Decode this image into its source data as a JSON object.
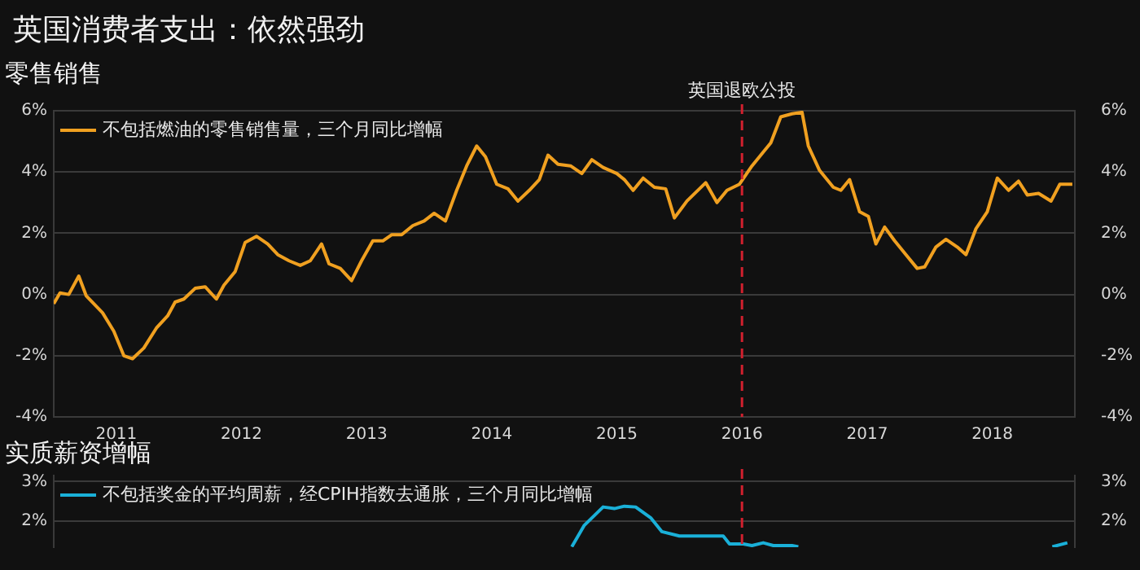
{
  "chart_data": [
    {
      "type": "line",
      "title": "英国消费者支出：依然强劲",
      "subtitle": "零售销售",
      "legend": "top left",
      "grid": "y",
      "line_style": "solid",
      "marker": "none",
      "xlim": [
        2010.5,
        2018.66
      ],
      "xticks": [
        2011,
        2012,
        2013,
        2014,
        2015,
        2016,
        2017,
        2018
      ],
      "ylim": [
        -4,
        6
      ],
      "yticks": [
        {
          "value": -4,
          "label": "-4%"
        },
        {
          "value": -2,
          "label": "-2%"
        },
        {
          "value": 0,
          "label": "0%"
        },
        {
          "value": 2,
          "label": "2%"
        },
        {
          "value": 4,
          "label": "4%"
        },
        {
          "value": 6,
          "label": "6%"
        }
      ],
      "y2lim": [
        -4,
        6
      ],
      "y2ticks": [
        {
          "value": -4,
          "label": "-4%"
        },
        {
          "value": -2,
          "label": "-2%"
        },
        {
          "value": 0,
          "label": "0%"
        },
        {
          "value": 2,
          "label": "2%"
        },
        {
          "value": 4,
          "label": "4%"
        },
        {
          "value": 6,
          "label": "6%"
        }
      ],
      "ref_lines": [
        {
          "axis": "x",
          "value": 2016,
          "label": "英国退欧公投",
          "color": "#d0202e",
          "line_style": "dashed"
        }
      ],
      "series": [
        {
          "name": "不包括燃油的零售销售量，三个月同比增幅",
          "color": "#f0a020",
          "x": [
            2010.5,
            2010.55,
            2010.62,
            2010.7,
            2010.76,
            2010.89,
            2010.98,
            2011.06,
            2011.13,
            2011.22,
            2011.32,
            2011.41,
            2011.47,
            2011.54,
            2011.63,
            2011.71,
            2011.8,
            2011.86,
            2011.95,
            2012.03,
            2012.12,
            2012.21,
            2012.29,
            2012.38,
            2012.47,
            2012.55,
            2012.64,
            2012.7,
            2012.79,
            2012.88,
            2012.96,
            2013.05,
            2013.13,
            2013.2,
            2013.28,
            2013.37,
            2013.46,
            2013.54,
            2013.63,
            2013.72,
            2013.8,
            2013.88,
            2013.95,
            2014.04,
            2014.13,
            2014.21,
            2014.3,
            2014.38,
            2014.45,
            2014.53,
            2014.63,
            2014.72,
            2014.8,
            2014.89,
            2015,
            2015.06,
            2015.13,
            2015.21,
            2015.3,
            2015.39,
            2015.46,
            2015.56,
            2015.71,
            2015.8,
            2015.88,
            2015.98,
            2016.08,
            2016.17,
            2016.23,
            2016.31,
            2016.4,
            2016.48,
            2016.53,
            2016.62,
            2016.73,
            2016.79,
            2016.86,
            2016.94,
            2017.01,
            2017.07,
            2017.14,
            2017.22,
            2017.31,
            2017.4,
            2017.46,
            2017.55,
            2017.63,
            2017.72,
            2017.79,
            2017.87,
            2017.96,
            2018.04,
            2018.13,
            2018.21,
            2018.28,
            2018.37,
            2018.47,
            2018.54,
            2018.64
          ],
          "values": [
            -0.3,
            0.05,
            0,
            0.6,
            -0.05,
            -0.6,
            -1.2,
            -2,
            -2.1,
            -1.75,
            -1.1,
            -0.7,
            -0.25,
            -0.15,
            0.2,
            0.25,
            -0.15,
            0.3,
            0.75,
            1.7,
            1.9,
            1.65,
            1.3,
            1.1,
            0.95,
            1.1,
            1.65,
            1,
            0.85,
            0.45,
            1.1,
            1.75,
            1.75,
            1.95,
            1.95,
            2.25,
            2.4,
            2.65,
            2.4,
            3.4,
            4.2,
            4.85,
            4.5,
            3.6,
            3.45,
            3.05,
            3.4,
            3.75,
            4.55,
            4.25,
            4.2,
            3.95,
            4.4,
            4.15,
            3.95,
            3.75,
            3.4,
            3.8,
            3.5,
            3.45,
            2.5,
            3.05,
            3.65,
            3,
            3.4,
            3.6,
            4.2,
            4.65,
            4.95,
            5.8,
            5.9,
            5.95,
            4.85,
            4.05,
            3.5,
            3.4,
            3.75,
            2.7,
            2.55,
            1.65,
            2.2,
            1.75,
            1.3,
            0.85,
            0.9,
            1.55,
            1.8,
            1.55,
            1.3,
            2.15,
            2.7,
            3.8,
            3.4,
            3.7,
            3.25,
            3.3,
            3.05,
            3.6,
            3.6
          ]
        }
      ]
    },
    {
      "type": "line",
      "title": "实质薪资增幅",
      "legend": "top left",
      "grid": "y",
      "line_style": "solid",
      "marker": "none",
      "tick_labels": "y",
      "xlim": [
        2010.5,
        2018.66
      ],
      "ylim": [
        1.35,
        3.15
      ],
      "yticks": [
        {
          "value": 2,
          "label": "2%"
        },
        {
          "value": 3,
          "label": "3%"
        }
      ],
      "y2lim": [
        1.35,
        3.15
      ],
      "y2ticks": [
        {
          "value": 2,
          "label": "2%"
        },
        {
          "value": 3,
          "label": "3%"
        }
      ],
      "ref_lines": [
        {
          "axis": "x",
          "value": 2016,
          "color": "#d0202e",
          "line_style": "dashed"
        }
      ],
      "series": [
        {
          "name": "不包括奖金的平均周薪，经CPIH指数去通胀，三个月同比增幅",
          "color": "#1ab0d8",
          "x": [
            2014.64,
            2014.74,
            2014.89,
            2014.98,
            2015.06,
            2015.15,
            2015.27,
            2015.36,
            2015.5,
            2015.85,
            2015.9,
            2016.01,
            2016.08,
            2016.17,
            2016.25,
            2016.4,
            2016.45,
            2017.5,
            2018.48,
            2018.6
          ],
          "values": [
            1.36,
            1.9,
            2.36,
            2.32,
            2.38,
            2.36,
            2.09,
            1.74,
            1.63,
            1.63,
            1.43,
            1.43,
            1.39,
            1.46,
            1.39,
            1.39,
            1.36,
            null,
            1.36,
            1.46
          ]
        }
      ]
    }
  ]
}
